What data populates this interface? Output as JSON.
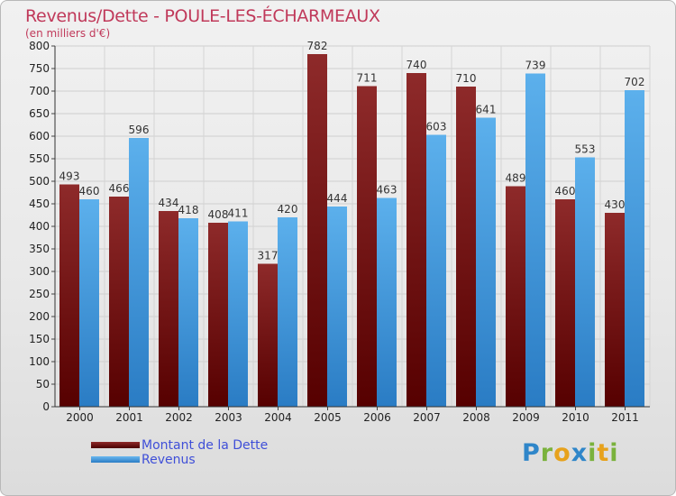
{
  "chart_data": {
    "type": "bar",
    "title": "Revenus/Dette - POULE-LES-ÉCHARMEAUX",
    "subtitle": "(en milliers d'€)",
    "categories": [
      "2000",
      "2001",
      "2002",
      "2003",
      "2004",
      "2005",
      "2006",
      "2007",
      "2008",
      "2009",
      "2010",
      "2011"
    ],
    "series": [
      {
        "name": "Montant de la Dette",
        "values": [
          493,
          466,
          434,
          408,
          317,
          782,
          711,
          740,
          710,
          489,
          460,
          430
        ]
      },
      {
        "name": "Revenus",
        "values": [
          460,
          596,
          418,
          411,
          420,
          444,
          463,
          603,
          641,
          739,
          553,
          702
        ]
      }
    ],
    "ylim": [
      0,
      800
    ],
    "yticks": [
      0,
      50,
      100,
      150,
      200,
      250,
      300,
      350,
      400,
      450,
      500,
      550,
      600,
      650,
      700,
      750,
      800
    ],
    "grid": true,
    "legend_position": "bottom-left"
  },
  "colors": {
    "debt_top": "#8e2a2a",
    "debt_bottom": "#560000",
    "revenue_top": "#5cb0ec",
    "revenue_bottom": "#2a7cc4",
    "title": "#c0395a",
    "legend_text": "#3f4fd8"
  },
  "logo": {
    "letters": [
      "P",
      "r",
      "o",
      "x",
      "i",
      "t",
      "i"
    ]
  }
}
